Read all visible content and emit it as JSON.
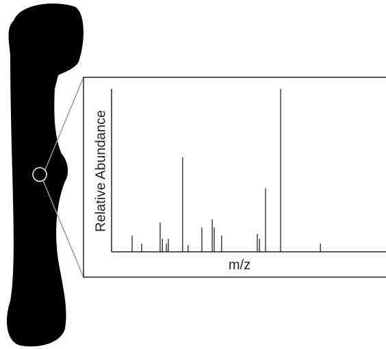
{
  "chart_data": {
    "type": "spectrum",
    "x_label": "m/z",
    "y_label": "Relative Abundance",
    "x": [
      7.5,
      11,
      17.7,
      18.5,
      20,
      20.7,
      25.9,
      27.9,
      32.9,
      36.7,
      37.4,
      40.1,
      53.1,
      53.9,
      56.1,
      61.6,
      76.1
    ],
    "values": [
      10,
      5,
      18,
      8,
      5,
      8,
      58,
      4,
      15,
      20,
      15,
      10,
      11,
      8,
      39,
      100,
      5
    ],
    "color": "#222222",
    "xlim": [
      0,
      100
    ],
    "ylim": [
      0,
      100
    ]
  }
}
